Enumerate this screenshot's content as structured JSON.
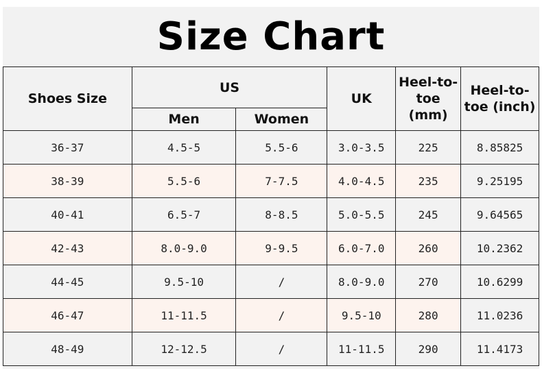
{
  "title": "Size Chart",
  "headers": {
    "shoes_size": "Shoes Size",
    "us": "US",
    "men": "Men",
    "women": "Women",
    "uk": "UK",
    "mm": "Heel-to-toe (mm)",
    "inch": "Heel-to-toe (inch)"
  },
  "colors": {
    "alt_row": "#fdf3ee",
    "row": "#f2f2f2"
  },
  "rows": [
    [
      "36-37",
      "4.5-5",
      "5.5-6",
      "3.0-3.5",
      "225",
      "8.85825"
    ],
    [
      "38-39",
      "5.5-6",
      "7-7.5",
      "4.0-4.5",
      "235",
      "9.25195"
    ],
    [
      "40-41",
      "6.5-7",
      "8-8.5",
      "5.0-5.5",
      "245",
      "9.64565"
    ],
    [
      "42-43",
      "8.0-9.0",
      "9-9.5",
      "6.0-7.0",
      "260",
      "10.2362"
    ],
    [
      "44-45",
      "9.5-10",
      "/",
      "8.0-9.0",
      "270",
      "10.6299"
    ],
    [
      "46-47",
      "11-11.5",
      "/",
      "9.5-10",
      "280",
      "11.0236"
    ],
    [
      "48-49",
      "12-12.5",
      "/",
      "11-11.5",
      "290",
      "11.4173"
    ]
  ]
}
